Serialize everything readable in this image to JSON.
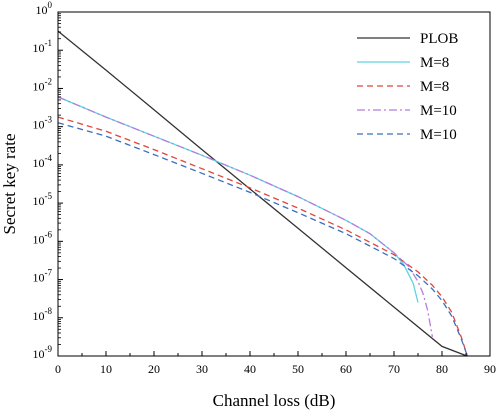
{
  "chart_data": {
    "type": "line",
    "title": "",
    "xlabel": "Channel loss (dB)",
    "ylabel": "Secret key rate",
    "xlim": [
      0,
      90
    ],
    "ylim_log10": [
      -9,
      0
    ],
    "yscale": "log",
    "grid": false,
    "legend_position": "top-right",
    "x_ticks": [
      "0",
      "10",
      "20",
      "30",
      "40",
      "50",
      "60",
      "70",
      "80",
      "90"
    ],
    "y_tick_base": "10",
    "y_tick_exponents": [
      "0",
      "-1",
      "-2",
      "-3",
      "-4",
      "-5",
      "-6",
      "-7",
      "-8",
      "-9"
    ],
    "series": [
      {
        "name": "PLOB",
        "color": "#333333",
        "dash": "solid",
        "x": [
          0,
          10,
          20,
          30,
          40,
          50,
          60,
          70,
          80,
          85.2
        ],
        "log10_y": [
          -0.5,
          -1.52,
          -2.56,
          -3.6,
          -4.63,
          -5.66,
          -6.69,
          -7.72,
          -8.75,
          -9.0
        ]
      },
      {
        "name": "M=8",
        "color": "#5fd3e0",
        "dash": "solid",
        "x": [
          0,
          10,
          20,
          30,
          40,
          50,
          60,
          65,
          70,
          72,
          74,
          75
        ],
        "log10_y": [
          -2.22,
          -2.75,
          -3.25,
          -3.75,
          -4.27,
          -4.83,
          -5.45,
          -5.8,
          -6.3,
          -6.6,
          -7.1,
          -7.6
        ]
      },
      {
        "name": "M=8",
        "color": "#e0443c",
        "dash": "dashed",
        "x": [
          0,
          10,
          20,
          30,
          40,
          50,
          60,
          70,
          75,
          78,
          80,
          82,
          84,
          85.3
        ],
        "log10_y": [
          -2.75,
          -3.12,
          -3.6,
          -4.1,
          -4.6,
          -5.13,
          -5.7,
          -6.35,
          -6.8,
          -7.15,
          -7.45,
          -7.85,
          -8.5,
          -9.0
        ]
      },
      {
        "name": "M=10",
        "color": "#b97be0",
        "dash": "dashdot",
        "x": [
          0,
          10,
          20,
          30,
          40,
          50,
          60,
          65,
          70,
          73,
          75,
          76,
          77,
          78
        ],
        "log10_y": [
          -2.22,
          -2.75,
          -3.25,
          -3.75,
          -4.27,
          -4.83,
          -5.45,
          -5.8,
          -6.3,
          -6.65,
          -7.05,
          -7.35,
          -7.8,
          -8.5
        ]
      },
      {
        "name": "M=10",
        "color": "#3a6fc0",
        "dash": "dashed",
        "x": [
          0,
          10,
          20,
          30,
          40,
          50,
          60,
          70,
          75,
          78,
          80,
          82,
          84,
          85.3
        ],
        "log10_y": [
          -2.9,
          -3.25,
          -3.73,
          -4.22,
          -4.72,
          -5.25,
          -5.8,
          -6.45,
          -6.9,
          -7.25,
          -7.55,
          -7.95,
          -8.55,
          -9.0
        ]
      }
    ]
  }
}
